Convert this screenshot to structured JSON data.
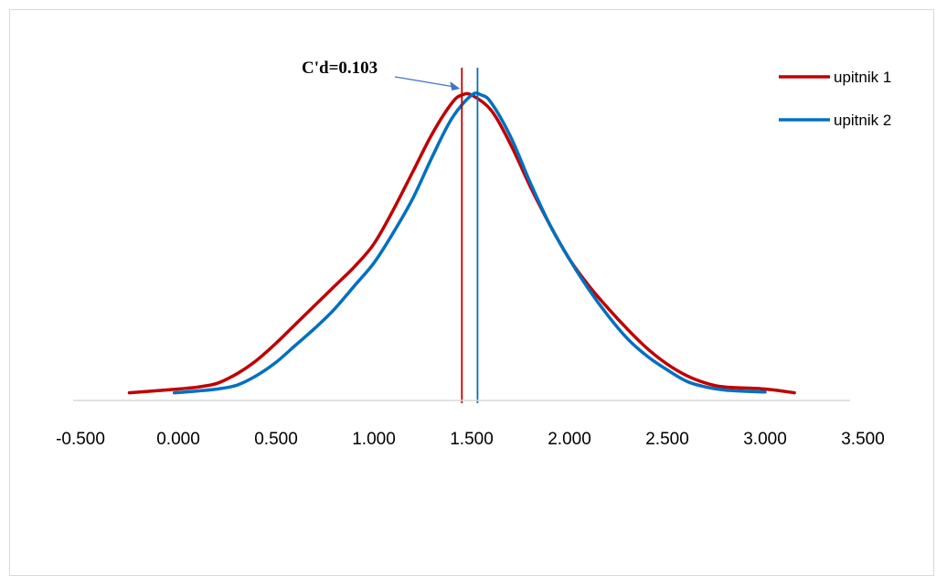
{
  "chart_data": {
    "type": "line",
    "title": "",
    "xlabel": "",
    "ylabel": "",
    "xlim": [
      -0.5,
      3.5
    ],
    "ylim": [
      0,
      1
    ],
    "x_ticks": [
      "-0.500",
      "0.000",
      "0.500",
      "1.000",
      "1.500",
      "2.000",
      "2.500",
      "3.000",
      "3.500"
    ],
    "x_tick_values": [
      -0.5,
      0.0,
      0.5,
      1.0,
      1.5,
      2.0,
      2.5,
      3.0,
      3.5
    ],
    "grid": false,
    "legend_position": "top-right",
    "series": [
      {
        "name": "upitnik 1",
        "color": "#C00000",
        "points": [
          [
            -0.25,
            0.02
          ],
          [
            0.0,
            0.03
          ],
          [
            0.1,
            0.035
          ],
          [
            0.2,
            0.045
          ],
          [
            0.3,
            0.07
          ],
          [
            0.4,
            0.105
          ],
          [
            0.5,
            0.15
          ],
          [
            0.6,
            0.2
          ],
          [
            0.7,
            0.25
          ],
          [
            0.8,
            0.3
          ],
          [
            0.9,
            0.35
          ],
          [
            1.0,
            0.41
          ],
          [
            1.1,
            0.5
          ],
          [
            1.2,
            0.6
          ],
          [
            1.3,
            0.7
          ],
          [
            1.4,
            0.78
          ],
          [
            1.45,
            0.8
          ],
          [
            1.5,
            0.8
          ],
          [
            1.6,
            0.76
          ],
          [
            1.7,
            0.67
          ],
          [
            1.8,
            0.56
          ],
          [
            1.9,
            0.46
          ],
          [
            2.0,
            0.37
          ],
          [
            2.1,
            0.3
          ],
          [
            2.2,
            0.24
          ],
          [
            2.3,
            0.185
          ],
          [
            2.4,
            0.135
          ],
          [
            2.5,
            0.095
          ],
          [
            2.6,
            0.065
          ],
          [
            2.7,
            0.045
          ],
          [
            2.8,
            0.035
          ],
          [
            3.0,
            0.03
          ],
          [
            3.15,
            0.02
          ]
        ]
      },
      {
        "name": "upitnik 2",
        "color": "#0070C0",
        "points": [
          [
            -0.02,
            0.02
          ],
          [
            0.1,
            0.025
          ],
          [
            0.2,
            0.03
          ],
          [
            0.3,
            0.04
          ],
          [
            0.4,
            0.065
          ],
          [
            0.5,
            0.1
          ],
          [
            0.6,
            0.145
          ],
          [
            0.7,
            0.19
          ],
          [
            0.8,
            0.24
          ],
          [
            0.9,
            0.3
          ],
          [
            1.0,
            0.36
          ],
          [
            1.1,
            0.44
          ],
          [
            1.2,
            0.53
          ],
          [
            1.3,
            0.64
          ],
          [
            1.4,
            0.74
          ],
          [
            1.5,
            0.8
          ],
          [
            1.55,
            0.8
          ],
          [
            1.6,
            0.78
          ],
          [
            1.7,
            0.69
          ],
          [
            1.8,
            0.57
          ],
          [
            1.9,
            0.46
          ],
          [
            2.0,
            0.37
          ],
          [
            2.1,
            0.29
          ],
          [
            2.2,
            0.22
          ],
          [
            2.3,
            0.16
          ],
          [
            2.4,
            0.115
          ],
          [
            2.5,
            0.08
          ],
          [
            2.6,
            0.05
          ],
          [
            2.7,
            0.035
          ],
          [
            2.8,
            0.027
          ],
          [
            3.0,
            0.022
          ]
        ]
      }
    ],
    "reference_lines": [
      {
        "x": 1.45,
        "color": "#C00000"
      },
      {
        "x": 1.53,
        "color": "#0070C0"
      }
    ],
    "annotation": {
      "text": "C'd=0.103",
      "points_to_x": 1.45
    }
  }
}
